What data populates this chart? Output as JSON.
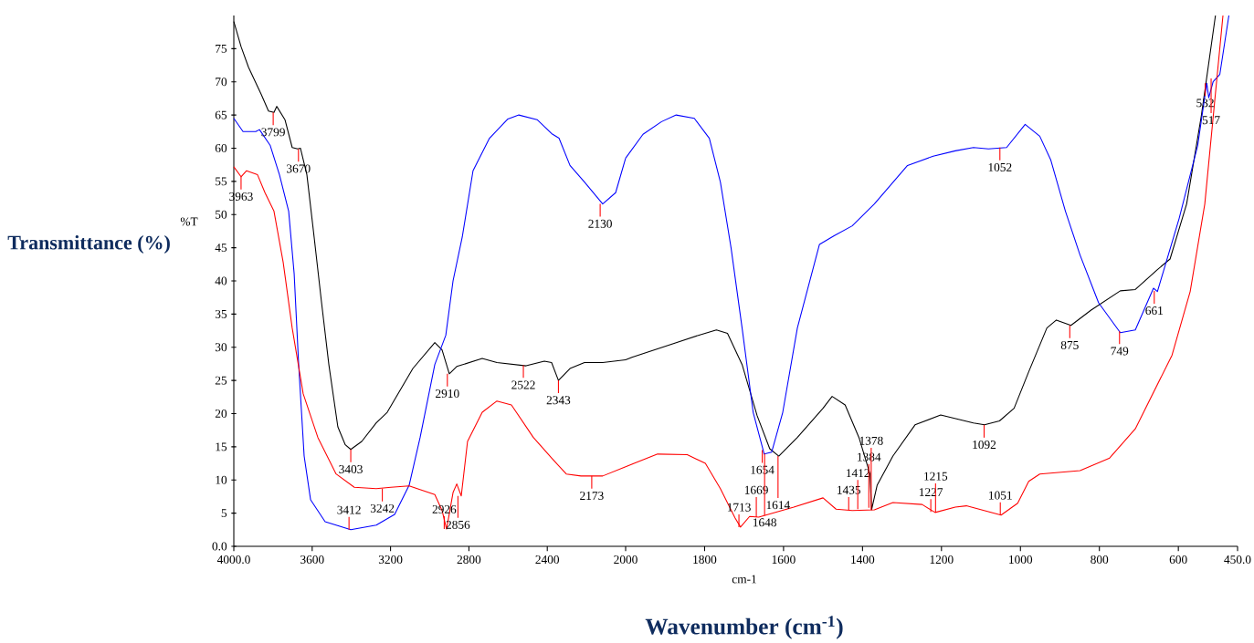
{
  "chart_data": [
    {
      "type": "line",
      "ylabel": "Transmittance (%)",
      "xlim": [
        4000,
        2000
      ],
      "ylim": [
        0,
        80
      ],
      "xticks": [
        {
          "value": 4000,
          "label": "4000.0"
        },
        3600,
        3200,
        2800,
        2400
      ],
      "yticks": [
        {
          "value": 0,
          "label": "0.0"
        },
        5,
        10,
        15,
        20,
        25,
        30,
        35,
        40,
        45,
        50,
        55,
        60,
        65,
        70,
        75
      ],
      "grid": false,
      "marker": "none",
      "line_style": "solid",
      "series": [
        {
          "color": "#000000",
          "x": [
            4000,
            3963,
            3925,
            3860,
            3823,
            3795,
            3781,
            3739,
            3702,
            3674,
            3660,
            3627,
            3590,
            3552,
            3515,
            3469,
            3431,
            3403,
            3347,
            3273,
            3217,
            3086,
            2974,
            2937,
            2900,
            2862,
            2732,
            2657,
            2508,
            2415,
            2378,
            2343,
            2284,
            2210,
            2117,
            2000
          ],
          "values": [
            79.1,
            75.3,
            72.2,
            68.1,
            65.6,
            65.4,
            66.3,
            64.3,
            60.1,
            59.9,
            60,
            56,
            46.6,
            36.7,
            27.4,
            18,
            15.3,
            14.6,
            15.8,
            18.6,
            20.2,
            26.8,
            30.7,
            29.6,
            26,
            27.1,
            28.3,
            27.7,
            27.2,
            27.9,
            27.7,
            25,
            26.8,
            27.7,
            27.7,
            28.1
          ]
        },
        {
          "color": "#0000ff",
          "x": [
            4000,
            3953,
            3888,
            3869,
            3814,
            3767,
            3720,
            3692,
            3669,
            3641,
            3608,
            3534,
            3403,
            3273,
            3179,
            3105,
            3049,
            2974,
            2918,
            2881,
            2834,
            2779,
            2695,
            2601,
            2545,
            2452,
            2378,
            2340,
            2284,
            2210,
            2117,
            2051,
            2000
          ],
          "values": [
            64.5,
            62.5,
            62.5,
            62.8,
            60.4,
            56,
            50.5,
            41.1,
            27.4,
            13.6,
            7,
            3.7,
            2.5,
            3.2,
            4.8,
            9.2,
            16.4,
            27.4,
            31.8,
            40,
            46.6,
            56.6,
            61.5,
            64.4,
            65,
            64.3,
            62.2,
            61.5,
            57.4,
            54.9,
            51.6,
            53.3,
            58.5
          ]
        },
        {
          "color": "#ff0000",
          "x": [
            4000,
            3963,
            3935,
            3879,
            3841,
            3795,
            3748,
            3702,
            3646,
            3571,
            3478,
            3385,
            3273,
            3198,
            3105,
            2974,
            2937,
            2914,
            2881,
            2862,
            2839,
            2807,
            2732,
            2657,
            2583,
            2471,
            2378,
            2303,
            2228,
            2117,
            2000
          ],
          "values": [
            57.2,
            55.7,
            56.6,
            56,
            53.3,
            50.5,
            42.8,
            32.9,
            23,
            16.4,
            10.9,
            8.9,
            8.7,
            8.9,
            9.1,
            7.8,
            5.4,
            2.6,
            8.1,
            9.4,
            7.6,
            15.8,
            20.2,
            21.9,
            21.3,
            16.4,
            13.3,
            10.9,
            10.6,
            10.6,
            12
          ]
        }
      ],
      "annotations": [
        "%T",
        {
          "text": "3963",
          "x": 3963,
          "y": 55.7
        },
        {
          "text": "3799",
          "x": 3799,
          "y": 65.4
        },
        {
          "text": "3670",
          "x": 3670,
          "y": 59.9
        },
        {
          "text": "3403",
          "x": 3403,
          "y": 14.6
        },
        {
          "text": "3412",
          "x": 3412,
          "y": 2.5
        },
        {
          "text": "3242",
          "x": 3242,
          "y": 8.7
        },
        {
          "text": "2926",
          "x": 2926,
          "y": 2.6
        },
        {
          "text": "2910",
          "x": 2910,
          "y": 26
        },
        {
          "text": "2856",
          "x": 2856,
          "y": 7.6
        },
        {
          "text": "2522",
          "x": 2522,
          "y": 27.3
        },
        {
          "text": "2343",
          "x": 2343,
          "y": 25
        },
        {
          "text": "2173",
          "x": 2173,
          "y": 10.6
        },
        {
          "text": "2130",
          "x": 2130,
          "y": 51.6
        }
      ]
    },
    {
      "type": "line",
      "xlabel": "Wavenumber (cm$^{-1}$)",
      "xlim": [
        2000,
        450
      ],
      "yticks": [
        0,
        5,
        10,
        15,
        20,
        25,
        30,
        35,
        40,
        45,
        50,
        55,
        60,
        65,
        70,
        75
      ],
      "xticks": [
        2000,
        1800,
        1600,
        1400,
        1200,
        1000,
        800,
        600,
        {
          "value": 450,
          "label": "450.0"
        }
      ],
      "tick_labels": "x",
      "grid": false,
      "marker": "none",
      "line_style": "solid",
      "series": [
        {
          "color": "#000000",
          "x": [
            2000,
            1984,
            1872,
            1816,
            1770,
            1742,
            1705,
            1667,
            1635,
            1612,
            1565,
            1500,
            1477,
            1444,
            1409,
            1381,
            1377,
            1363,
            1323,
            1267,
            1202,
            1119,
            1091,
            1053,
            1016,
            979,
            933,
            909,
            872,
            821,
            747,
            709,
            653,
            621,
            579,
            542,
            506
          ],
          "values": [
            28.1,
            28.5,
            30.7,
            31.8,
            32.6,
            32.1,
            27.4,
            19.7,
            14.7,
            13.6,
            16.4,
            20.8,
            22.6,
            21.3,
            16.4,
            10.9,
            5.5,
            9.2,
            13.6,
            18.3,
            19.8,
            18.6,
            18.3,
            18.9,
            20.8,
            26.3,
            32.9,
            34.1,
            33.3,
            35.6,
            38.5,
            38.7,
            41.7,
            43.3,
            51.6,
            64.8,
            80
          ]
        },
        {
          "color": "#0000ff",
          "x": [
            2000,
            1956,
            1909,
            1872,
            1826,
            1788,
            1760,
            1733,
            1705,
            1677,
            1649,
            1630,
            1602,
            1565,
            1509,
            1472,
            1426,
            1370,
            1286,
            1221,
            1165,
            1119,
            1081,
            1035,
            988,
            951,
            923,
            886,
            849,
            802,
            747,
            709,
            663,
            653,
            598,
            551,
            528,
            523,
            512,
            495,
            472
          ],
          "values": [
            58.5,
            62.1,
            64,
            65,
            64.5,
            61.5,
            54.9,
            45,
            32.9,
            20.2,
            13.9,
            14.2,
            20.2,
            32.9,
            45.5,
            46.8,
            48.3,
            51.6,
            57.4,
            58.8,
            59.6,
            60.1,
            59.9,
            60.1,
            63.6,
            61.8,
            58.2,
            50.5,
            43.9,
            36.7,
            32.2,
            32.6,
            38.9,
            38.4,
            49.4,
            60.4,
            69.8,
            67.6,
            70,
            71.1,
            80
          ]
        },
        {
          "color": "#ff0000",
          "x": [
            2000,
            1919,
            1844,
            1798,
            1760,
            1723,
            1709,
            1686,
            1663,
            1574,
            1500,
            1467,
            1426,
            1370,
            1323,
            1249,
            1216,
            1165,
            1137,
            1049,
            1007,
            979,
            951,
            849,
            774,
            709,
            616,
            570,
            533,
            487
          ],
          "values": [
            12,
            13.9,
            13.8,
            12.5,
            8.7,
            4.3,
            2.9,
            4.5,
            4.4,
            5.9,
            7.3,
            5.6,
            5.4,
            5.5,
            6.6,
            6.3,
            5.1,
            5.9,
            6.1,
            4.7,
            6.5,
            9.8,
            10.9,
            11.4,
            13.3,
            17.7,
            28.8,
            38.4,
            51.6,
            80
          ]
        }
      ],
      "annotations": [
        "cm-1",
        {
          "text": "1713",
          "x": 1713,
          "y": 2.9
        },
        {
          "text": "1669",
          "x": 1669,
          "y": 4.4
        },
        {
          "text": "1654",
          "x": 1654,
          "y": 14.5
        },
        {
          "text": "1648",
          "x": 1648,
          "y": 14
        },
        {
          "text": "1614",
          "x": 1614,
          "y": 13.6
        },
        {
          "text": "1435",
          "x": 1435,
          "y": 5.5
        },
        {
          "text": "1412",
          "x": 1412,
          "y": 5.6
        },
        {
          "text": "1384",
          "x": 1384,
          "y": 5.8
        },
        {
          "text": "1378",
          "x": 1378,
          "y": 5.5
        },
        {
          "text": "1227",
          "x": 1227,
          "y": 5.2
        },
        {
          "text": "1215",
          "x": 1215,
          "y": 5.1
        },
        {
          "text": "1092",
          "x": 1092,
          "y": 18.3
        },
        {
          "text": "1052",
          "x": 1052,
          "y": 60.1
        },
        {
          "text": "1051",
          "x": 1051,
          "y": 4.7
        },
        {
          "text": "875",
          "x": 875,
          "y": 33.3
        },
        {
          "text": "749",
          "x": 749,
          "y": 32.4
        },
        {
          "text": "661",
          "x": 661,
          "y": 38.5
        },
        {
          "text": "532",
          "x": 532,
          "y": 69.8
        },
        {
          "text": "517",
          "x": 517,
          "y": 70.5
        }
      ]
    }
  ]
}
